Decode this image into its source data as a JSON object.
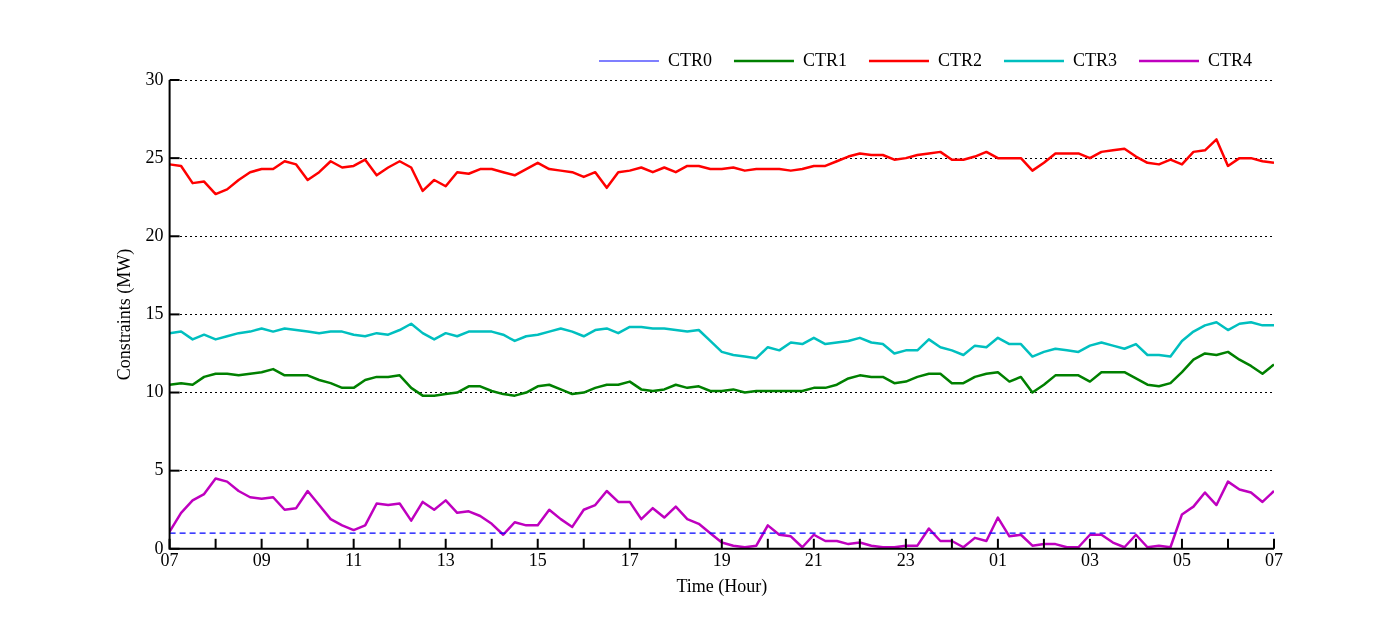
{
  "chart_data": {
    "type": "line",
    "xlabel": "Time (Hour)",
    "ylabel": "Constraints (MW)",
    "x": [
      "--01-01T07:00",
      "--01-01T07:15",
      "--01-01T07:30",
      "--01-01T07:45",
      "--01-01T08:00",
      "--01-01T08:15",
      "--01-01T08:30",
      "--01-01T08:45",
      "--01-01T09:00",
      "--01-01T09:15",
      "--01-01T09:30",
      "--01-01T09:45",
      "--01-01T10:00",
      "--01-01T10:15",
      "--01-01T10:30",
      "--01-01T10:45",
      "--01-01T11:00",
      "--01-01T11:15",
      "--01-01T11:30",
      "--01-01T11:45",
      "--01-01T12:00",
      "--01-01T12:15",
      "--01-01T12:30",
      "--01-01T12:45",
      "--01-01T13:00",
      "--01-01T13:15",
      "--01-01T13:30",
      "--01-01T13:45",
      "--01-01T14:00",
      "--01-01T14:15",
      "--01-01T14:30",
      "--01-01T14:45",
      "--01-01T15:00",
      "--01-01T15:15",
      "--01-01T15:30",
      "--01-01T15:45",
      "--01-01T16:00",
      "--01-01T16:15",
      "--01-01T16:30",
      "--01-01T16:45",
      "--01-01T17:00",
      "--01-01T17:15",
      "--01-01T17:30",
      "--01-01T17:45",
      "--01-01T18:00",
      "--01-01T18:15",
      "--01-01T18:30",
      "--01-01T18:45",
      "--01-01T19:00",
      "--01-01T19:15",
      "--01-01T19:30",
      "--01-01T19:45",
      "--01-01T20:00",
      "--01-01T20:15",
      "--01-01T20:30",
      "--01-01T20:45",
      "--01-01T21:00",
      "--01-01T21:15",
      "--01-01T21:30",
      "--01-01T21:45",
      "--01-01T22:00",
      "--01-01T22:15",
      "--01-01T22:30",
      "--01-01T22:45",
      "--01-01T23:00",
      "--01-01T23:15",
      "--01-01T23:30",
      "--01-01T23:45",
      "--01-02T00:00",
      "--01-02T00:15",
      "--01-02T00:30",
      "--01-02T00:45",
      "--01-02T01:00",
      "--01-02T01:15",
      "--01-02T01:30",
      "--01-02T01:45",
      "--01-02T02:00",
      "--01-02T02:15",
      "--01-02T02:30",
      "--01-02T02:45",
      "--01-02T03:00",
      "--01-02T03:15",
      "--01-02T03:30",
      "--01-02T03:45",
      "--01-02T04:00",
      "--01-02T04:15",
      "--01-02T04:30",
      "--01-02T04:45",
      "--01-02T05:00",
      "--01-02T05:15",
      "--01-02T05:30",
      "--01-02T05:45",
      "--01-02T06:00",
      "--01-02T06:15",
      "--01-02T06:30",
      "--01-02T06:45",
      "--01-02T07:00"
    ],
    "series": [
      {
        "name": "CTR0",
        "color": "#0000ff",
        "line_style": "dashed",
        "x": [
          "--01-01T07:00",
          "--01-02T07:00"
        ],
        "values": [
          1,
          1
        ]
      },
      {
        "name": "CTR1",
        "color": "#008000",
        "values": [
          10.5,
          10.6,
          10.5,
          11.0,
          11.2,
          11.2,
          11.1,
          11.2,
          11.3,
          11.5,
          11.1,
          11.1,
          11.1,
          10.8,
          10.6,
          10.3,
          10.3,
          10.8,
          11.0,
          11.0,
          11.1,
          10.3,
          9.8,
          9.8,
          9.9,
          10.0,
          10.4,
          10.4,
          10.1,
          9.9,
          9.8,
          10.0,
          10.4,
          10.5,
          10.2,
          9.9,
          10.0,
          10.3,
          10.5,
          10.5,
          10.7,
          10.2,
          10.1,
          10.2,
          10.5,
          10.3,
          10.4,
          10.1,
          10.1,
          10.2,
          10.0,
          10.1,
          10.1,
          10.1,
          10.1,
          10.1,
          10.3,
          10.3,
          10.5,
          10.9,
          11.1,
          11.0,
          11.0,
          10.6,
          10.7,
          11.0,
          11.2,
          11.2,
          10.6,
          10.6,
          11.0,
          11.2,
          11.3,
          10.7,
          11.0,
          10.0,
          10.5,
          11.1,
          11.1,
          11.1,
          10.7,
          11.3,
          11.3,
          11.3,
          10.9,
          10.5,
          10.4,
          10.6,
          11.3,
          12.1,
          12.5,
          12.4,
          12.6,
          12.1,
          11.7,
          11.2,
          11.8
        ]
      },
      {
        "name": "CTR2",
        "color": "#ff0000",
        "values": [
          24.6,
          24.5,
          23.4,
          23.5,
          22.7,
          23.0,
          23.6,
          24.1,
          24.3,
          24.3,
          24.8,
          24.6,
          23.6,
          24.1,
          24.8,
          24.4,
          24.5,
          24.9,
          23.9,
          24.4,
          24.8,
          24.4,
          22.9,
          23.6,
          23.2,
          24.1,
          24.0,
          24.3,
          24.3,
          24.1,
          23.9,
          24.3,
          24.7,
          24.3,
          24.2,
          24.1,
          23.8,
          24.1,
          23.1,
          24.1,
          24.2,
          24.4,
          24.1,
          24.4,
          24.1,
          24.5,
          24.5,
          24.3,
          24.3,
          24.4,
          24.2,
          24.3,
          24.3,
          24.3,
          24.2,
          24.3,
          24.5,
          24.5,
          24.8,
          25.1,
          25.3,
          25.2,
          25.2,
          24.9,
          25.0,
          25.2,
          25.3,
          25.4,
          24.9,
          24.9,
          25.1,
          25.4,
          25.0,
          25.0,
          25.0,
          24.2,
          24.7,
          25.3,
          25.3,
          25.3,
          25.0,
          25.4,
          25.5,
          25.6,
          25.1,
          24.7,
          24.6,
          24.9,
          24.6,
          25.4,
          25.5,
          26.2,
          24.5,
          25.0,
          25.0,
          24.8,
          24.7
        ]
      },
      {
        "name": "CTR3",
        "color": "#00bfbf",
        "values": [
          13.8,
          13.9,
          13.4,
          13.7,
          13.4,
          13.6,
          13.8,
          13.9,
          14.1,
          13.9,
          14.1,
          14.0,
          13.9,
          13.8,
          13.9,
          13.9,
          13.7,
          13.6,
          13.8,
          13.7,
          14.0,
          14.4,
          13.8,
          13.4,
          13.8,
          13.6,
          13.9,
          13.9,
          13.9,
          13.7,
          13.3,
          13.6,
          13.7,
          13.9,
          14.1,
          13.9,
          13.6,
          14.0,
          14.1,
          13.8,
          14.2,
          14.2,
          14.1,
          14.1,
          14.0,
          13.9,
          14.0,
          13.3,
          12.6,
          12.4,
          12.3,
          12.2,
          12.9,
          12.7,
          13.2,
          13.1,
          13.5,
          13.1,
          13.2,
          13.3,
          13.5,
          13.2,
          13.1,
          12.5,
          12.7,
          12.7,
          13.4,
          12.9,
          12.7,
          12.4,
          13.0,
          12.9,
          13.5,
          13.1,
          13.1,
          12.3,
          12.6,
          12.8,
          12.7,
          12.6,
          13.0,
          13.2,
          13.0,
          12.8,
          13.1,
          12.4,
          12.4,
          12.3,
          13.3,
          13.9,
          14.3,
          14.5,
          14.0,
          14.4,
          14.5,
          14.3,
          14.3
        ]
      },
      {
        "name": "CTR4",
        "color": "#bf00bf",
        "values": [
          1.1,
          2.3,
          3.1,
          3.5,
          4.5,
          4.3,
          3.7,
          3.3,
          3.2,
          3.3,
          2.5,
          2.6,
          3.7,
          2.8,
          1.9,
          1.5,
          1.2,
          1.5,
          2.9,
          2.8,
          2.9,
          1.8,
          3.0,
          2.5,
          3.1,
          2.3,
          2.4,
          2.1,
          1.6,
          0.9,
          1.7,
          1.5,
          1.5,
          2.5,
          1.9,
          1.4,
          2.5,
          2.8,
          3.7,
          3.0,
          3.0,
          1.9,
          2.6,
          2.0,
          2.7,
          1.9,
          1.6,
          1.0,
          0.4,
          0.2,
          0.1,
          0.2,
          1.5,
          0.9,
          0.8,
          0.1,
          0.9,
          0.5,
          0.5,
          0.3,
          0.4,
          0.2,
          0.1,
          0.1,
          0.2,
          0.2,
          1.3,
          0.5,
          0.5,
          0.1,
          0.7,
          0.5,
          2.0,
          0.8,
          0.9,
          0.2,
          0.3,
          0.3,
          0.1,
          0.1,
          0.9,
          0.9,
          0.4,
          0.1,
          0.9,
          0.1,
          0.2,
          0.1,
          2.2,
          2.7,
          3.6,
          2.8,
          4.3,
          3.8,
          3.6,
          3.0,
          3.7
        ]
      }
    ],
    "xlim": [
      "--01-01T07:00",
      "--01-02T07:00"
    ],
    "xticks": [
      {
        "value": "--01-01T07:00",
        "label": "07"
      },
      {
        "value": "--01-01T08:00",
        "label": null
      },
      {
        "value": "--01-01T09:00",
        "label": "09"
      },
      {
        "value": "--01-01T10:00",
        "label": null
      },
      {
        "value": "--01-01T11:00",
        "label": "11"
      },
      {
        "value": "--01-01T12:00",
        "label": null
      },
      {
        "value": "--01-01T13:00",
        "label": "13"
      },
      {
        "value": "--01-01T14:00",
        "label": null
      },
      {
        "value": "--01-01T15:00",
        "label": "15"
      },
      {
        "value": "--01-01T16:00",
        "label": null
      },
      {
        "value": "--01-01T17:00",
        "label": "17"
      },
      {
        "value": "--01-01T18:00",
        "label": null
      },
      {
        "value": "--01-01T19:00",
        "label": "19"
      },
      {
        "value": "--01-01T20:00",
        "label": null
      },
      {
        "value": "--01-01T21:00",
        "label": "21"
      },
      {
        "value": "--01-01T22:00",
        "label": null
      },
      {
        "value": "--01-01T23:00",
        "label": "23"
      },
      {
        "value": "--01-02T00:00",
        "label": null
      },
      {
        "value": "--01-02T01:00",
        "label": "01"
      },
      {
        "value": "--01-02T02:00",
        "label": null
      },
      {
        "value": "--01-02T03:00",
        "label": "03"
      },
      {
        "value": "--01-02T04:00",
        "label": null
      },
      {
        "value": "--01-02T05:00",
        "label": "05"
      },
      {
        "value": "--01-02T06:00",
        "label": null
      },
      {
        "value": "--01-02T07:00",
        "label": "07"
      }
    ],
    "ylim": [
      0,
      30
    ],
    "yticks": [
      0,
      5,
      10,
      15,
      20,
      25,
      30
    ],
    "grid": "y",
    "legend": "top right",
    "marker": "none",
    "line_style": "solid"
  }
}
